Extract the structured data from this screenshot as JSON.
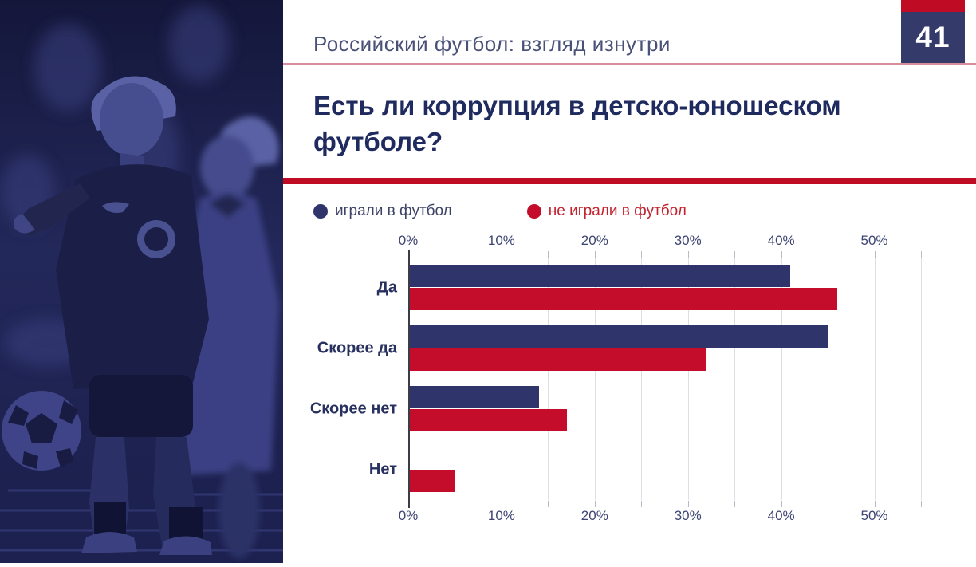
{
  "slide": {
    "header_title": "Российский футбол: взгляд изнутри",
    "page_number": "41",
    "title_line1": "Есть ли коррупция в детско-юношеском",
    "title_line2": "футболе?"
  },
  "colors": {
    "navy_bar": "#2f356a",
    "red_bar": "#c30d2a",
    "divider_red": "#c00b25",
    "badge_navy": "#343b6b",
    "title_navy": "#1f2a5e",
    "gridline": "#dcdde5",
    "photo_duotone": "#23285a"
  },
  "legend": [
    {
      "label": "играли в футбол",
      "color": "#2f356a"
    },
    {
      "label": "не играли в футбол",
      "color": "#c30d2a"
    }
  ],
  "chart_data": {
    "type": "bar",
    "orientation": "horizontal",
    "title": "Есть ли коррупция в детско-юношеском футболе?",
    "categories": [
      "Да",
      "Скорее да",
      "Скорее нет",
      "Нет"
    ],
    "series": [
      {
        "name": "играли в футбол",
        "color": "#2f356a",
        "values": [
          41,
          45,
          14,
          0
        ]
      },
      {
        "name": "не играли в футбол",
        "color": "#c30d2a",
        "values": [
          46,
          32,
          17,
          5
        ]
      }
    ],
    "value_unit": "%",
    "xlim": [
      0,
      55
    ],
    "label_step": 10,
    "grid_step": 5,
    "x_tick_labels": [
      "0%",
      "10%",
      "20%",
      "30%",
      "40%",
      "50%"
    ],
    "grid": true,
    "axis_labels_position": "top and bottom",
    "legend_position": "top-left"
  },
  "photo": {
    "name": "youth-football-duotone-photo"
  }
}
